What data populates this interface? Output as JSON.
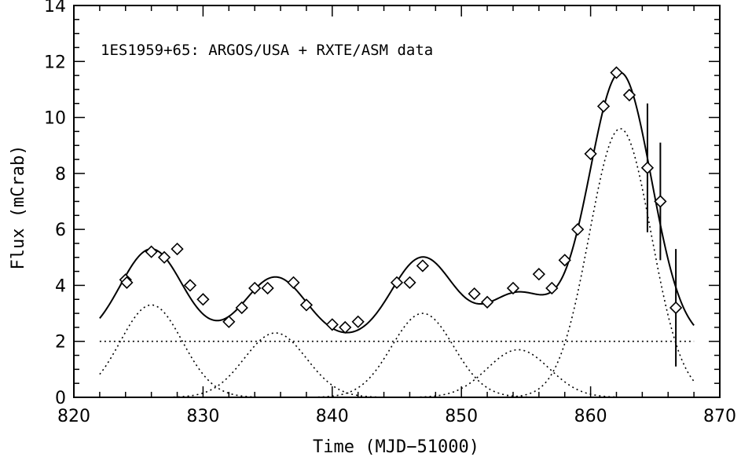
{
  "chart_data": {
    "type": "scatter",
    "title": "",
    "annotation": "1ES1959+65: ARGOS/USA + RXTE/ASM data",
    "xlabel": "Time (MJD−51000)",
    "ylabel": "Flux (mCrab)",
    "xlim": [
      820,
      870
    ],
    "ylim": [
      0,
      14
    ],
    "xticks": [
      820,
      830,
      840,
      850,
      860,
      870
    ],
    "yticks": [
      0,
      2,
      4,
      6,
      8,
      10,
      12,
      14
    ],
    "grid": false,
    "points": [
      {
        "x": 824.0,
        "y": 4.2
      },
      {
        "x": 824.1,
        "y": 4.1
      },
      {
        "x": 826.0,
        "y": 5.2
      },
      {
        "x": 827.0,
        "y": 5.0
      },
      {
        "x": 828.0,
        "y": 5.3
      },
      {
        "x": 829.0,
        "y": 4.0
      },
      {
        "x": 830.0,
        "y": 3.5
      },
      {
        "x": 832.0,
        "y": 2.7
      },
      {
        "x": 833.0,
        "y": 3.2
      },
      {
        "x": 834.0,
        "y": 3.9
      },
      {
        "x": 835.0,
        "y": 3.9
      },
      {
        "x": 837.0,
        "y": 4.1
      },
      {
        "x": 838.0,
        "y": 3.3
      },
      {
        "x": 840.0,
        "y": 2.6
      },
      {
        "x": 841.0,
        "y": 2.5
      },
      {
        "x": 842.0,
        "y": 2.7
      },
      {
        "x": 845.0,
        "y": 4.1
      },
      {
        "x": 846.0,
        "y": 4.1
      },
      {
        "x": 847.0,
        "y": 4.7
      },
      {
        "x": 851.0,
        "y": 3.7
      },
      {
        "x": 852.0,
        "y": 3.4
      },
      {
        "x": 854.0,
        "y": 3.9
      },
      {
        "x": 856.0,
        "y": 4.4
      },
      {
        "x": 857.0,
        "y": 3.9
      },
      {
        "x": 858.0,
        "y": 4.9
      },
      {
        "x": 859.0,
        "y": 6.0
      },
      {
        "x": 860.0,
        "y": 8.7
      },
      {
        "x": 861.0,
        "y": 10.4
      },
      {
        "x": 862.0,
        "y": 11.6
      },
      {
        "x": 863.0,
        "y": 10.8
      },
      {
        "x": 864.4,
        "y": 8.2,
        "err": 2.3
      },
      {
        "x": 865.4,
        "y": 7.0,
        "err": 2.1
      },
      {
        "x": 866.6,
        "y": 3.2,
        "err": 2.1
      }
    ],
    "baseline": 2.0,
    "components": [
      {
        "center": 826.0,
        "amplitude": 3.3,
        "sigma": 2.4
      },
      {
        "center": 835.6,
        "amplitude": 2.3,
        "sigma": 2.4
      },
      {
        "center": 847.0,
        "amplitude": 3.0,
        "sigma": 2.4
      },
      {
        "center": 854.4,
        "amplitude": 1.7,
        "sigma": 2.4
      },
      {
        "center": 862.3,
        "amplitude": 9.6,
        "sigma": 2.4
      }
    ],
    "fit_range": [
      822,
      868
    ]
  }
}
